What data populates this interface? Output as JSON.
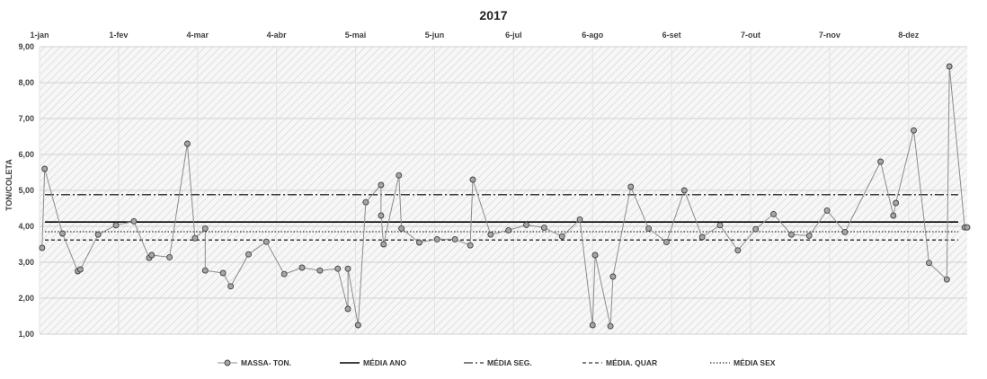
{
  "chart_data": {
    "type": "line",
    "title": "2017",
    "ylabel": "TON/COLETA",
    "xlabel": "",
    "ylim": [
      1,
      9
    ],
    "xlim": [
      "2017-01-01",
      "2017-12-31"
    ],
    "y_ticks": [
      "1,00",
      "2,00",
      "3,00",
      "4,00",
      "5,00",
      "6,00",
      "7,00",
      "8,00",
      "9,00"
    ],
    "x_ticks": [
      {
        "date": "2017-01-01",
        "label": "1-jan"
      },
      {
        "date": "2017-02-01",
        "label": "1-fev"
      },
      {
        "date": "2017-03-04",
        "label": "4-mar"
      },
      {
        "date": "2017-04-04",
        "label": "4-abr"
      },
      {
        "date": "2017-05-05",
        "label": "5-mai"
      },
      {
        "date": "2017-06-05",
        "label": "5-jun"
      },
      {
        "date": "2017-07-06",
        "label": "6-jul"
      },
      {
        "date": "2017-08-06",
        "label": "6-ago"
      },
      {
        "date": "2017-09-06",
        "label": "6-set"
      },
      {
        "date": "2017-10-07",
        "label": "7-out"
      },
      {
        "date": "2017-11-07",
        "label": "7-nov"
      },
      {
        "date": "2017-12-08",
        "label": "8-dez"
      }
    ],
    "grid": "horizontal",
    "legend": "bottom",
    "series": [
      {
        "name": "MASSA- TON.",
        "kind": "points",
        "color": "#808080",
        "x": [
          "2017-01-02",
          "2017-01-03",
          "2017-01-10",
          "2017-01-16",
          "2017-01-17",
          "2017-01-24",
          "2017-01-31",
          "2017-02-07",
          "2017-02-13",
          "2017-02-14",
          "2017-02-21",
          "2017-02-28",
          "2017-03-03",
          "2017-03-07",
          "2017-03-07",
          "2017-03-14",
          "2017-03-17",
          "2017-03-24",
          "2017-03-31",
          "2017-04-07",
          "2017-04-14",
          "2017-04-21",
          "2017-04-28",
          "2017-05-02",
          "2017-05-02",
          "2017-05-06",
          "2017-05-09",
          "2017-05-15",
          "2017-05-15",
          "2017-05-16",
          "2017-05-22",
          "2017-05-23",
          "2017-05-30",
          "2017-06-06",
          "2017-06-13",
          "2017-06-19",
          "2017-06-20",
          "2017-06-27",
          "2017-07-04",
          "2017-07-11",
          "2017-07-18",
          "2017-07-25",
          "2017-08-01",
          "2017-08-06",
          "2017-08-07",
          "2017-08-13",
          "2017-08-14",
          "2017-08-21",
          "2017-08-28",
          "2017-09-04",
          "2017-09-11",
          "2017-09-18",
          "2017-09-25",
          "2017-10-02",
          "2017-10-09",
          "2017-10-16",
          "2017-10-23",
          "2017-10-30",
          "2017-11-06",
          "2017-11-13",
          "2017-11-27",
          "2017-12-02",
          "2017-12-03",
          "2017-12-10",
          "2017-12-16",
          "2017-12-23",
          "2017-12-24",
          "2017-12-30",
          "2017-12-31"
        ],
        "values": [
          3.4,
          5.6,
          3.8,
          2.75,
          2.8,
          3.77,
          4.03,
          4.14,
          3.12,
          3.2,
          3.14,
          6.3,
          3.67,
          3.94,
          2.77,
          2.7,
          2.33,
          3.22,
          3.57,
          2.67,
          2.85,
          2.77,
          2.82,
          1.7,
          2.82,
          1.25,
          4.67,
          5.15,
          4.3,
          3.5,
          5.42,
          3.94,
          3.55,
          3.64,
          3.64,
          3.47,
          5.3,
          3.77,
          3.89,
          4.04,
          3.96,
          3.72,
          4.19,
          1.25,
          3.2,
          1.22,
          2.6,
          5.1,
          3.94,
          3.56,
          5.0,
          3.7,
          4.03,
          3.33,
          3.92,
          4.34,
          3.77,
          3.74,
          4.44,
          3.84,
          5.8,
          4.3,
          4.65,
          6.67,
          2.98,
          2.52,
          8.45,
          3.97,
          3.97
        ]
      },
      {
        "name": "MÉDIA ANO",
        "kind": "hline",
        "value": 4.12,
        "color": "#000000",
        "dash": "solid"
      },
      {
        "name": "MÉDIA SEG.",
        "kind": "hline",
        "value": 4.88,
        "color": "#000000",
        "dash": "dashdot"
      },
      {
        "name": "MÉDIA. QUAR",
        "kind": "hline",
        "value": 3.62,
        "color": "#000000",
        "dash": "dashed"
      },
      {
        "name": "MÉDIA SEX",
        "kind": "hline",
        "value": 3.85,
        "color": "#000000",
        "dash": "dotted"
      }
    ]
  }
}
